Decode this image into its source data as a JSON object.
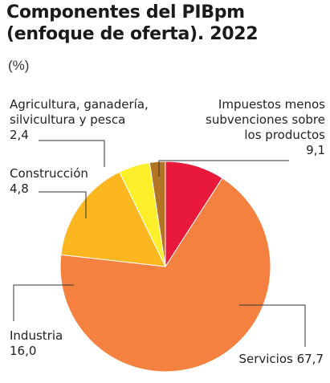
{
  "title_line1": "Componentes del PIBpm",
  "title_line2": "(enfoque de oferta). 2022",
  "unit": "(%)",
  "chart_data": {
    "type": "pie",
    "title": "Componentes del PIBpm (enfoque de oferta). 2022",
    "unit": "(%)",
    "slices": [
      {
        "name_lines": [
          "Impuestos menos",
          "subvenciones sobre",
          "los productos"
        ],
        "value": 9.1,
        "label": "9,1",
        "color": "#e8193a"
      },
      {
        "name_lines": [
          "Servicios"
        ],
        "value": 67.7,
        "label": "67,7",
        "color": "#f58140"
      },
      {
        "name_lines": [
          "Industria"
        ],
        "value": 16.0,
        "label": "16,0",
        "color": "#fbb620"
      },
      {
        "name_lines": [
          "Construcción"
        ],
        "value": 4.8,
        "label": "4,8",
        "color": "#fdf02b"
      },
      {
        "name_lines": [
          "Agricultura, ganadería,",
          "silvicultura y pesca"
        ],
        "value": 2.4,
        "label": "2,4",
        "color": "#b37426"
      }
    ],
    "start_angle": "12 o'clock",
    "direction": "clockwise",
    "stroke_color": "#ffffff",
    "leader_color": "#333333"
  }
}
